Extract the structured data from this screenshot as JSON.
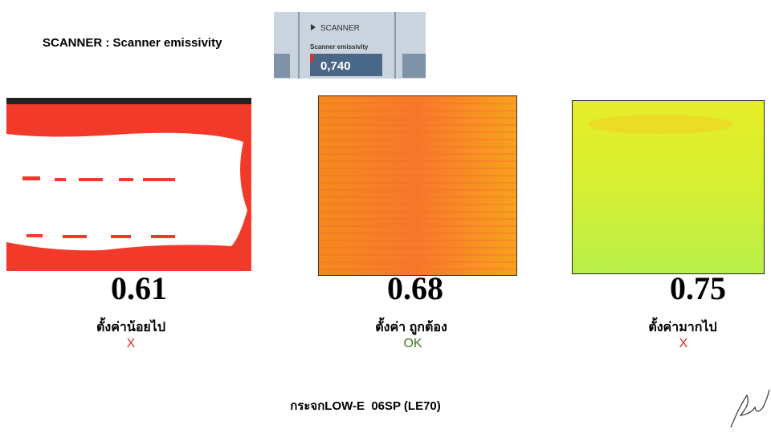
{
  "header": {
    "title": "SCANNER : Scanner emissivity"
  },
  "inset": {
    "section": "SCANNER",
    "field": "Scanner emissivity",
    "value": "0,740"
  },
  "panels": [
    {
      "value": 0.61,
      "label": "ตั้งค่าน้อยไป",
      "status": "X"
    },
    {
      "value": 0.68,
      "label": "ตั้งค่า ถูกต้อง",
      "status": "OK"
    },
    {
      "value": 0.75,
      "label": "ตั้งค่ามากไป",
      "status": "X"
    }
  ],
  "footer": "กระจกLOW-E  06SP (LE70)"
}
